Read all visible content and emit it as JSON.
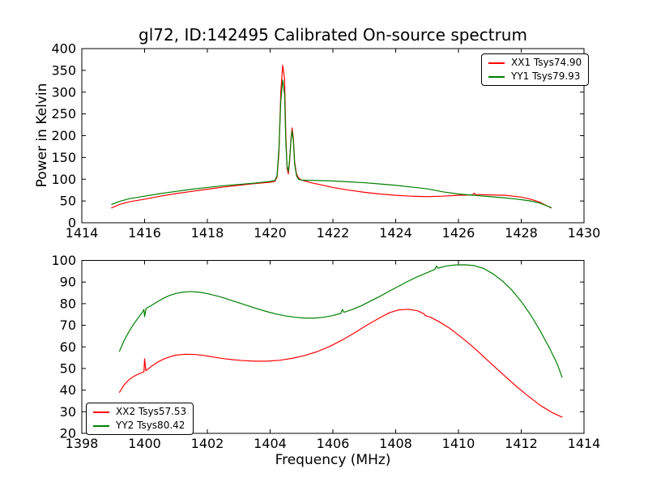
{
  "figure": {
    "title": "gl72, ID:142495 Calibrated On-source spectrum",
    "background": "#ffffff",
    "frame_color": "#000000"
  },
  "chart_data": [
    {
      "type": "line",
      "name": "top-spectrum",
      "xlabel": "",
      "ylabel": "Power in Kelvin",
      "xlim": [
        1414,
        1430
      ],
      "ylim": [
        0,
        400
      ],
      "xticks": [
        1414,
        1416,
        1418,
        1420,
        1422,
        1424,
        1426,
        1428,
        1430
      ],
      "yticks": [
        0,
        50,
        100,
        150,
        200,
        250,
        300,
        350,
        400
      ],
      "grid": false,
      "legend_position": "upper right",
      "series": [
        {
          "name": "XX1",
          "label": "XX1 Tsys74.90",
          "color": "#ff0000",
          "points": [
            [
              1414.95,
              34
            ],
            [
              1415.2,
              42
            ],
            [
              1415.5,
              48
            ],
            [
              1416,
              54
            ],
            [
              1416.5,
              61
            ],
            [
              1417,
              67
            ],
            [
              1417.5,
              72
            ],
            [
              1418,
              77
            ],
            [
              1418.5,
              82
            ],
            [
              1419,
              86
            ],
            [
              1419.5,
              90
            ],
            [
              1420,
              93
            ],
            [
              1420.15,
              95
            ],
            [
              1420.22,
              105
            ],
            [
              1420.28,
              160
            ],
            [
              1420.34,
              300
            ],
            [
              1420.4,
              362
            ],
            [
              1420.46,
              330
            ],
            [
              1420.5,
              200
            ],
            [
              1420.54,
              125
            ],
            [
              1420.58,
              112
            ],
            [
              1420.62,
              140
            ],
            [
              1420.66,
              190
            ],
            [
              1420.7,
              218
            ],
            [
              1420.74,
              195
            ],
            [
              1420.78,
              140
            ],
            [
              1420.84,
              112
            ],
            [
              1420.9,
              103
            ],
            [
              1421,
              98
            ],
            [
              1421.3,
              92
            ],
            [
              1421.7,
              86
            ],
            [
              1422,
              81
            ],
            [
              1422.5,
              75
            ],
            [
              1423,
              70
            ],
            [
              1423.5,
              66
            ],
            [
              1424,
              63
            ],
            [
              1424.5,
              61
            ],
            [
              1425,
              60
            ],
            [
              1425.5,
              61
            ],
            [
              1426,
              63
            ],
            [
              1426.45,
              64
            ],
            [
              1426.5,
              68
            ],
            [
              1426.55,
              65
            ],
            [
              1427,
              64
            ],
            [
              1427.5,
              63
            ],
            [
              1428,
              59
            ],
            [
              1428.3,
              54
            ],
            [
              1428.6,
              47
            ],
            [
              1428.95,
              34
            ]
          ]
        },
        {
          "name": "YY1",
          "label": "YY1 Tsys79.93",
          "color": "#008000",
          "points": [
            [
              1414.95,
              42
            ],
            [
              1415.2,
              49
            ],
            [
              1415.5,
              55
            ],
            [
              1416,
              61
            ],
            [
              1416.5,
              67
            ],
            [
              1417,
              72
            ],
            [
              1417.5,
              77
            ],
            [
              1418,
              81
            ],
            [
              1418.5,
              85
            ],
            [
              1419,
              88
            ],
            [
              1419.5,
              91
            ],
            [
              1420,
              95
            ],
            [
              1420.15,
              97
            ],
            [
              1420.22,
              108
            ],
            [
              1420.28,
              170
            ],
            [
              1420.34,
              280
            ],
            [
              1420.4,
              328
            ],
            [
              1420.46,
              295
            ],
            [
              1420.5,
              185
            ],
            [
              1420.54,
              130
            ],
            [
              1420.58,
              118
            ],
            [
              1420.62,
              145
            ],
            [
              1420.66,
              185
            ],
            [
              1420.7,
              211
            ],
            [
              1420.74,
              188
            ],
            [
              1420.78,
              135
            ],
            [
              1420.84,
              108
            ],
            [
              1420.9,
              100
            ],
            [
              1421,
              98
            ],
            [
              1421.5,
              97
            ],
            [
              1422,
              96
            ],
            [
              1422.5,
              94
            ],
            [
              1423,
              92
            ],
            [
              1423.5,
              89
            ],
            [
              1424,
              86
            ],
            [
              1424.5,
              82
            ],
            [
              1425,
              78
            ],
            [
              1425.5,
              71
            ],
            [
              1426,
              66
            ],
            [
              1426.5,
              63
            ],
            [
              1427,
              60
            ],
            [
              1427.5,
              57
            ],
            [
              1428,
              53
            ],
            [
              1428.3,
              50
            ],
            [
              1428.6,
              45
            ],
            [
              1428.95,
              35
            ]
          ]
        }
      ]
    },
    {
      "type": "line",
      "name": "bottom-spectrum",
      "xlabel": "Frequency (MHz)",
      "ylabel": "",
      "xlim": [
        1398,
        1414
      ],
      "ylim": [
        20,
        100
      ],
      "xticks": [
        1398,
        1400,
        1402,
        1404,
        1406,
        1408,
        1410,
        1412,
        1414
      ],
      "yticks": [
        20,
        30,
        40,
        50,
        60,
        70,
        80,
        90,
        100
      ],
      "grid": false,
      "legend_position": "lower left",
      "series": [
        {
          "name": "XX2",
          "label": "XX2 Tsys57.53",
          "color": "#ff0000",
          "points": [
            [
              1399.2,
              39
            ],
            [
              1399.35,
              42.5
            ],
            [
              1399.5,
              44.8
            ],
            [
              1399.65,
              46.3
            ],
            [
              1399.8,
              47.4
            ],
            [
              1399.93,
              48.2
            ],
            [
              1399.98,
              48.5
            ],
            [
              1400,
              54.5
            ],
            [
              1400.04,
              49
            ],
            [
              1400.2,
              50.8
            ],
            [
              1400.4,
              52.8
            ],
            [
              1400.6,
              54.3
            ],
            [
              1400.8,
              55.4
            ],
            [
              1401,
              56.2
            ],
            [
              1401.3,
              56.6
            ],
            [
              1401.6,
              56.5
            ],
            [
              1401.9,
              56
            ],
            [
              1402.2,
              55.3
            ],
            [
              1402.5,
              54.6
            ],
            [
              1402.8,
              54.1
            ],
            [
              1403.1,
              53.7
            ],
            [
              1403.5,
              53.4
            ],
            [
              1403.9,
              53.4
            ],
            [
              1404.3,
              53.8
            ],
            [
              1404.7,
              54.7
            ],
            [
              1405.1,
              56
            ],
            [
              1405.5,
              57.8
            ],
            [
              1405.9,
              60.2
            ],
            [
              1406.3,
              63.2
            ],
            [
              1406.7,
              66.6
            ],
            [
              1407.1,
              70.2
            ],
            [
              1407.5,
              73.5
            ],
            [
              1407.8,
              75.8
            ],
            [
              1408.1,
              77.1
            ],
            [
              1408.4,
              77.4
            ],
            [
              1408.7,
              76.7
            ],
            [
              1408.9,
              75.3
            ],
            [
              1408.95,
              74.4
            ],
            [
              1409.1,
              73.8
            ],
            [
              1409.4,
              71.5
            ],
            [
              1409.7,
              68.8
            ],
            [
              1410,
              65.5
            ],
            [
              1410.3,
              62
            ],
            [
              1410.6,
              58.2
            ],
            [
              1411,
              52.8
            ],
            [
              1411.4,
              47.5
            ],
            [
              1411.8,
              42.3
            ],
            [
              1412.2,
              37.5
            ],
            [
              1412.6,
              33
            ],
            [
              1413,
              29.5
            ],
            [
              1413.3,
              27.5
            ]
          ]
        },
        {
          "name": "YY2",
          "label": "YY2 Tsys80.42",
          "color": "#008000",
          "points": [
            [
              1399.2,
              58
            ],
            [
              1399.35,
              63
            ],
            [
              1399.5,
              67
            ],
            [
              1399.65,
              70.5
            ],
            [
              1399.8,
              73.5
            ],
            [
              1399.93,
              76
            ],
            [
              1399.98,
              77.3
            ],
            [
              1400,
              74
            ],
            [
              1400.05,
              77.8
            ],
            [
              1400.2,
              79
            ],
            [
              1400.4,
              80.8
            ],
            [
              1400.6,
              82.5
            ],
            [
              1400.8,
              83.8
            ],
            [
              1401,
              84.7
            ],
            [
              1401.2,
              85.3
            ],
            [
              1401.5,
              85.6
            ],
            [
              1401.8,
              85.2
            ],
            [
              1402.1,
              84.3
            ],
            [
              1402.4,
              83.2
            ],
            [
              1402.7,
              81.8
            ],
            [
              1403,
              80.4
            ],
            [
              1403.3,
              79
            ],
            [
              1403.6,
              77.6
            ],
            [
              1403.9,
              76.3
            ],
            [
              1404.2,
              75.2
            ],
            [
              1404.5,
              74.3
            ],
            [
              1404.8,
              73.7
            ],
            [
              1405.1,
              73.3
            ],
            [
              1405.4,
              73.3
            ],
            [
              1405.7,
              73.7
            ],
            [
              1406,
              74.5
            ],
            [
              1406.25,
              75.5
            ],
            [
              1406.3,
              77.3
            ],
            [
              1406.35,
              76
            ],
            [
              1406.6,
              77.2
            ],
            [
              1406.9,
              79
            ],
            [
              1407.2,
              81.2
            ],
            [
              1407.5,
              83.4
            ],
            [
              1407.8,
              85.8
            ],
            [
              1408.1,
              88.1
            ],
            [
              1408.4,
              90.4
            ],
            [
              1408.7,
              92.5
            ],
            [
              1409,
              94.3
            ],
            [
              1409.25,
              95.9
            ],
            [
              1409.3,
              97.4
            ],
            [
              1409.35,
              96.4
            ],
            [
              1409.6,
              97.4
            ],
            [
              1409.9,
              97.9
            ],
            [
              1410.2,
              98
            ],
            [
              1410.5,
              97.6
            ],
            [
              1410.8,
              96.3
            ],
            [
              1411.1,
              93.8
            ],
            [
              1411.4,
              90.5
            ],
            [
              1411.7,
              86.3
            ],
            [
              1412,
              81
            ],
            [
              1412.3,
              74.8
            ],
            [
              1412.6,
              67.5
            ],
            [
              1412.9,
              59.5
            ],
            [
              1413.15,
              52
            ],
            [
              1413.3,
              46
            ]
          ]
        }
      ]
    }
  ]
}
